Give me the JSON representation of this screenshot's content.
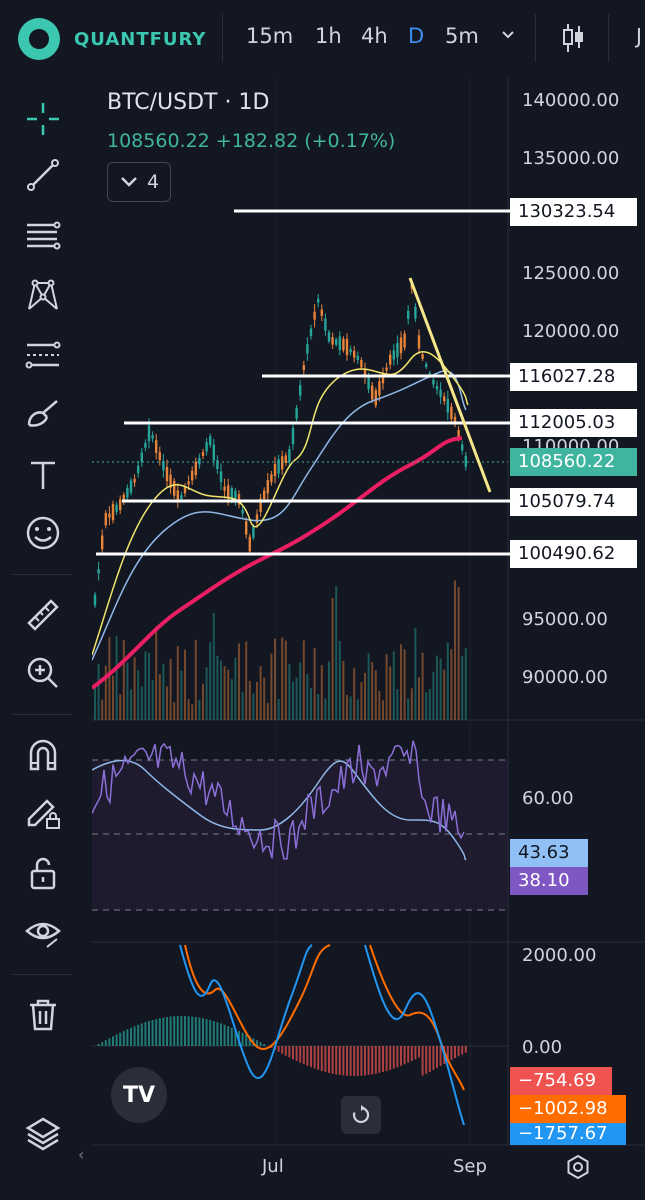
{
  "app": {
    "brand": "QUANTFURY"
  },
  "timeframes": [
    {
      "label": "15m",
      "active": false
    },
    {
      "label": "1h",
      "active": false
    },
    {
      "label": "4h",
      "active": false
    },
    {
      "label": "D",
      "active": true
    },
    {
      "label": "5m",
      "active": false
    }
  ],
  "topbar_cut_label": "J",
  "toolbar_icons": [
    "crosshair-icon",
    "trend-line-icon",
    "fib-lines-icon",
    "pattern-icon",
    "measure-lines-icon",
    "brush-icon",
    "text-icon",
    "emoji-icon",
    "ruler-icon",
    "zoom-in-icon",
    "magnet-icon",
    "lock-draw-icon",
    "unlock-icon",
    "eye-icon",
    "trash-icon",
    "layers-icon"
  ],
  "chart": {
    "symbol": "BTC/USDT · 1D",
    "price_line": "108560.22  +182.82 (+0.17%)",
    "indicator_toggle": "4",
    "colors": {
      "up": "#26a69a",
      "down": "#e8843a",
      "ma_fast": "#f2e56b",
      "ma_mid": "#8fb8e8",
      "ma_slow": "#e91e63",
      "rsi": "#8b6fd6",
      "hline": "#ffffff",
      "trendline": "#f5e68a"
    }
  },
  "price_axis": [
    "140000.00",
    "135000.00",
    "125000.00",
    "120000.00",
    "110000.00",
    "95000.00",
    "90000.00"
  ],
  "price_tags": [
    {
      "label": "130323.54",
      "type": "level"
    },
    {
      "label": "116027.28",
      "type": "level"
    },
    {
      "label": "112005.03",
      "type": "level"
    },
    {
      "label": "108560.22",
      "type": "current"
    },
    {
      "label": "105079.74",
      "type": "level"
    },
    {
      "label": "100490.62",
      "type": "level"
    }
  ],
  "rsi_axis": [
    "60.00"
  ],
  "rsi_tags": [
    {
      "label": "43.63",
      "color": "#90c0f5"
    },
    {
      "label": "38.10",
      "color": "#7e57c2"
    }
  ],
  "macd_axis": [
    "2000.00",
    "0.00"
  ],
  "macd_tags": [
    {
      "label": "−754.69",
      "color": "#ef5350"
    },
    {
      "label": "−1002.98",
      "color": "#ff6d00"
    },
    {
      "label": "−1757.67",
      "color": "#2196f3"
    }
  ],
  "date_axis": [
    "Jul",
    "Sep"
  ],
  "tv_logo": "TV"
}
